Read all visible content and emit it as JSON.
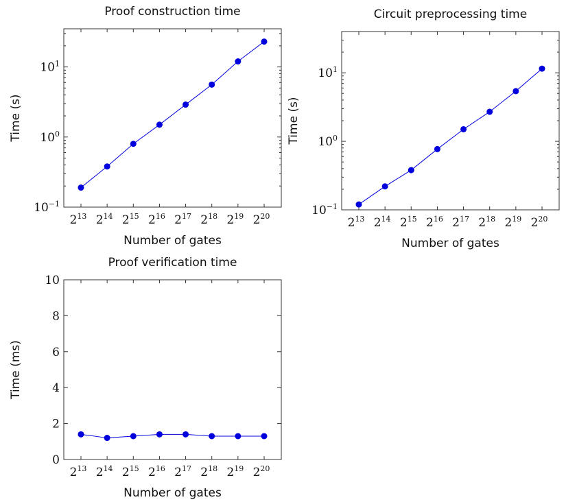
{
  "chart_data": [
    {
      "type": "line",
      "title": "Proof construction time",
      "xlabel": "Number of gates",
      "ylabel": "Time (s)",
      "yscale": "log",
      "ylim": [
        0.1,
        35
      ],
      "categories": [
        "2^13",
        "2^14",
        "2^15",
        "2^16",
        "2^17",
        "2^18",
        "2^19",
        "2^20"
      ],
      "x_tick_labels": [
        {
          "base": "2",
          "exp": "13"
        },
        {
          "base": "2",
          "exp": "14"
        },
        {
          "base": "2",
          "exp": "15"
        },
        {
          "base": "2",
          "exp": "16"
        },
        {
          "base": "2",
          "exp": "17"
        },
        {
          "base": "2",
          "exp": "18"
        },
        {
          "base": "2",
          "exp": "19"
        },
        {
          "base": "2",
          "exp": "20"
        }
      ],
      "y_tick_labels": [
        {
          "value": 0.1,
          "base": "10",
          "exp": "−1"
        },
        {
          "value": 1,
          "base": "10",
          "exp": "0"
        },
        {
          "value": 10,
          "base": "10",
          "exp": "1"
        }
      ],
      "series": [
        {
          "color": "#0000dd",
          "values": [
            0.19,
            0.38,
            0.8,
            1.5,
            2.9,
            5.6,
            12,
            23
          ]
        }
      ],
      "grid": false
    },
    {
      "type": "line",
      "title": "Circuit preprocessing time",
      "xlabel": "Number of gates",
      "ylabel": "Time (s)",
      "yscale": "log",
      "ylim": [
        0.1,
        40
      ],
      "categories": [
        "2^13",
        "2^14",
        "2^15",
        "2^16",
        "2^17",
        "2^18",
        "2^19",
        "2^20"
      ],
      "x_tick_labels": [
        {
          "base": "2",
          "exp": "13"
        },
        {
          "base": "2",
          "exp": "14"
        },
        {
          "base": "2",
          "exp": "15"
        },
        {
          "base": "2",
          "exp": "16"
        },
        {
          "base": "2",
          "exp": "17"
        },
        {
          "base": "2",
          "exp": "18"
        },
        {
          "base": "2",
          "exp": "19"
        },
        {
          "base": "2",
          "exp": "20"
        }
      ],
      "y_tick_labels": [
        {
          "value": 0.1,
          "base": "10",
          "exp": "−1"
        },
        {
          "value": 1,
          "base": "10",
          "exp": "0"
        },
        {
          "value": 10,
          "base": "10",
          "exp": "1"
        }
      ],
      "series": [
        {
          "color": "#0000dd",
          "values": [
            0.12,
            0.22,
            0.38,
            0.77,
            1.5,
            2.7,
            5.4,
            11.5
          ]
        }
      ],
      "grid": false
    },
    {
      "type": "line",
      "title": "Proof verification time",
      "xlabel": "Number of gates",
      "ylabel": "Time (ms)",
      "yscale": "linear",
      "ylim": [
        0,
        10
      ],
      "categories": [
        "2^13",
        "2^14",
        "2^15",
        "2^16",
        "2^17",
        "2^18",
        "2^19",
        "2^20"
      ],
      "x_tick_labels": [
        {
          "base": "2",
          "exp": "13"
        },
        {
          "base": "2",
          "exp": "14"
        },
        {
          "base": "2",
          "exp": "15"
        },
        {
          "base": "2",
          "exp": "16"
        },
        {
          "base": "2",
          "exp": "17"
        },
        {
          "base": "2",
          "exp": "18"
        },
        {
          "base": "2",
          "exp": "19"
        },
        {
          "base": "2",
          "exp": "20"
        }
      ],
      "y_tick_labels": [
        {
          "value": 0,
          "text": "0"
        },
        {
          "value": 2,
          "text": "2"
        },
        {
          "value": 4,
          "text": "4"
        },
        {
          "value": 6,
          "text": "6"
        },
        {
          "value": 8,
          "text": "8"
        },
        {
          "value": 10,
          "text": "10"
        }
      ],
      "series": [
        {
          "color": "#0000dd",
          "values": [
            1.4,
            1.2,
            1.3,
            1.4,
            1.4,
            1.3,
            1.3,
            1.3
          ]
        }
      ],
      "grid": false
    }
  ]
}
